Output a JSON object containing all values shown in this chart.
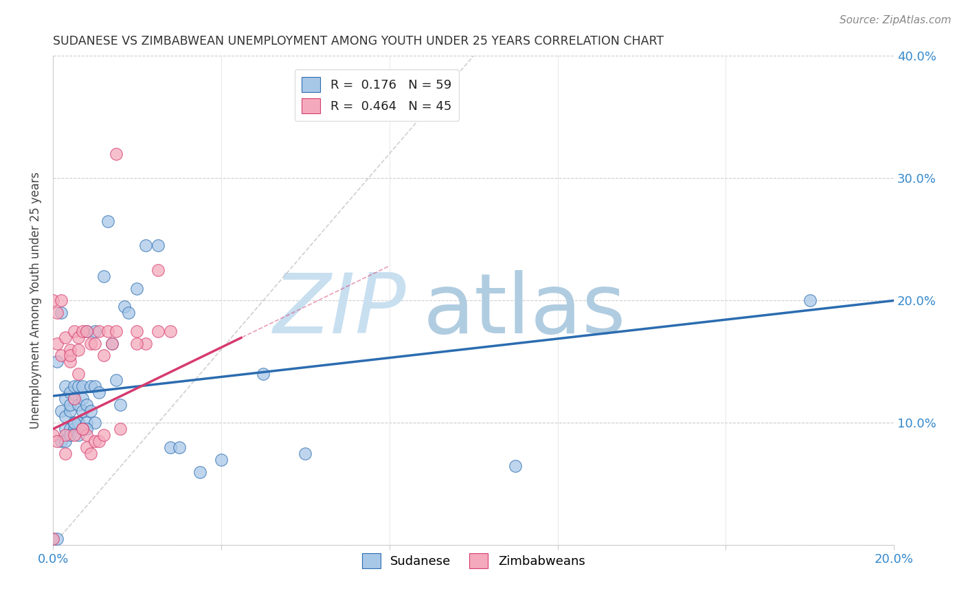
{
  "title": "SUDANESE VS ZIMBABWEAN UNEMPLOYMENT AMONG YOUTH UNDER 25 YEARS CORRELATION CHART",
  "source": "Source: ZipAtlas.com",
  "ylabel": "Unemployment Among Youth under 25 years",
  "xlim": [
    0,
    0.2
  ],
  "ylim": [
    0,
    0.4
  ],
  "xticks": [
    0.0,
    0.04,
    0.08,
    0.12,
    0.16,
    0.2
  ],
  "yticks": [
    0.0,
    0.1,
    0.2,
    0.3,
    0.4
  ],
  "xtick_labels": [
    "0.0%",
    "",
    "",
    "",
    "",
    "20.0%"
  ],
  "ytick_labels_right": [
    "",
    "10.0%",
    "20.0%",
    "30.0%",
    "40.0%"
  ],
  "legend_label1": "Sudanese",
  "legend_label2": "Zimbabweans",
  "R1": "0.176",
  "N1": "59",
  "R2": "0.464",
  "N2": "45",
  "blue_color": "#a8c8e8",
  "pink_color": "#f4aabc",
  "blue_line_color": "#2b6cb0",
  "pink_line_color": "#d63a6e",
  "watermark_color_zip": "#c5dff0",
  "watermark_color_atlas": "#a0c4e0",
  "watermark_text1": "ZIP",
  "watermark_text2": "atlas",
  "blue_line_start_y": 0.122,
  "blue_line_end_y": 0.2,
  "pink_line_start_y": 0.095,
  "pink_line_end_y": 0.17,
  "pink_line_end_x": 0.045,
  "ref_line_x": [
    0.0,
    0.1
  ],
  "ref_line_y": [
    0.0,
    0.4
  ],
  "sudanese_x": [
    0.0,
    0.001,
    0.001,
    0.002,
    0.002,
    0.002,
    0.003,
    0.003,
    0.003,
    0.003,
    0.004,
    0.004,
    0.004,
    0.004,
    0.005,
    0.005,
    0.005,
    0.005,
    0.006,
    0.006,
    0.006,
    0.006,
    0.007,
    0.007,
    0.007,
    0.007,
    0.008,
    0.008,
    0.008,
    0.009,
    0.009,
    0.01,
    0.01,
    0.01,
    0.011,
    0.012,
    0.013,
    0.014,
    0.015,
    0.016,
    0.017,
    0.018,
    0.02,
    0.022,
    0.025,
    0.028,
    0.03,
    0.035,
    0.04,
    0.05,
    0.06,
    0.11,
    0.18,
    0.003,
    0.004,
    0.005,
    0.006,
    0.007,
    0.008
  ],
  "sudanese_y": [
    0.005,
    0.005,
    0.15,
    0.11,
    0.085,
    0.19,
    0.12,
    0.105,
    0.095,
    0.13,
    0.125,
    0.095,
    0.11,
    0.115,
    0.13,
    0.1,
    0.095,
    0.12,
    0.1,
    0.115,
    0.13,
    0.1,
    0.12,
    0.095,
    0.13,
    0.11,
    0.175,
    0.1,
    0.115,
    0.13,
    0.11,
    0.175,
    0.13,
    0.1,
    0.125,
    0.22,
    0.265,
    0.165,
    0.135,
    0.115,
    0.195,
    0.19,
    0.21,
    0.245,
    0.245,
    0.08,
    0.08,
    0.06,
    0.07,
    0.14,
    0.075,
    0.065,
    0.2,
    0.085,
    0.09,
    0.1,
    0.09,
    0.095,
    0.095
  ],
  "zimbabwean_x": [
    0.0,
    0.0,
    0.001,
    0.001,
    0.002,
    0.002,
    0.003,
    0.003,
    0.004,
    0.004,
    0.005,
    0.005,
    0.006,
    0.006,
    0.007,
    0.007,
    0.008,
    0.008,
    0.009,
    0.01,
    0.011,
    0.012,
    0.013,
    0.014,
    0.015,
    0.016,
    0.02,
    0.022,
    0.025,
    0.028,
    0.003,
    0.004,
    0.005,
    0.006,
    0.007,
    0.008,
    0.009,
    0.01,
    0.011,
    0.012,
    0.015,
    0.02,
    0.025,
    0.0,
    0.001
  ],
  "zimbabwean_y": [
    0.005,
    0.2,
    0.19,
    0.165,
    0.155,
    0.2,
    0.17,
    0.075,
    0.16,
    0.15,
    0.12,
    0.175,
    0.17,
    0.14,
    0.175,
    0.095,
    0.175,
    0.09,
    0.165,
    0.165,
    0.175,
    0.155,
    0.175,
    0.165,
    0.32,
    0.095,
    0.175,
    0.165,
    0.225,
    0.175,
    0.09,
    0.155,
    0.09,
    0.16,
    0.095,
    0.08,
    0.075,
    0.085,
    0.085,
    0.09,
    0.175,
    0.165,
    0.175,
    0.09,
    0.085
  ]
}
